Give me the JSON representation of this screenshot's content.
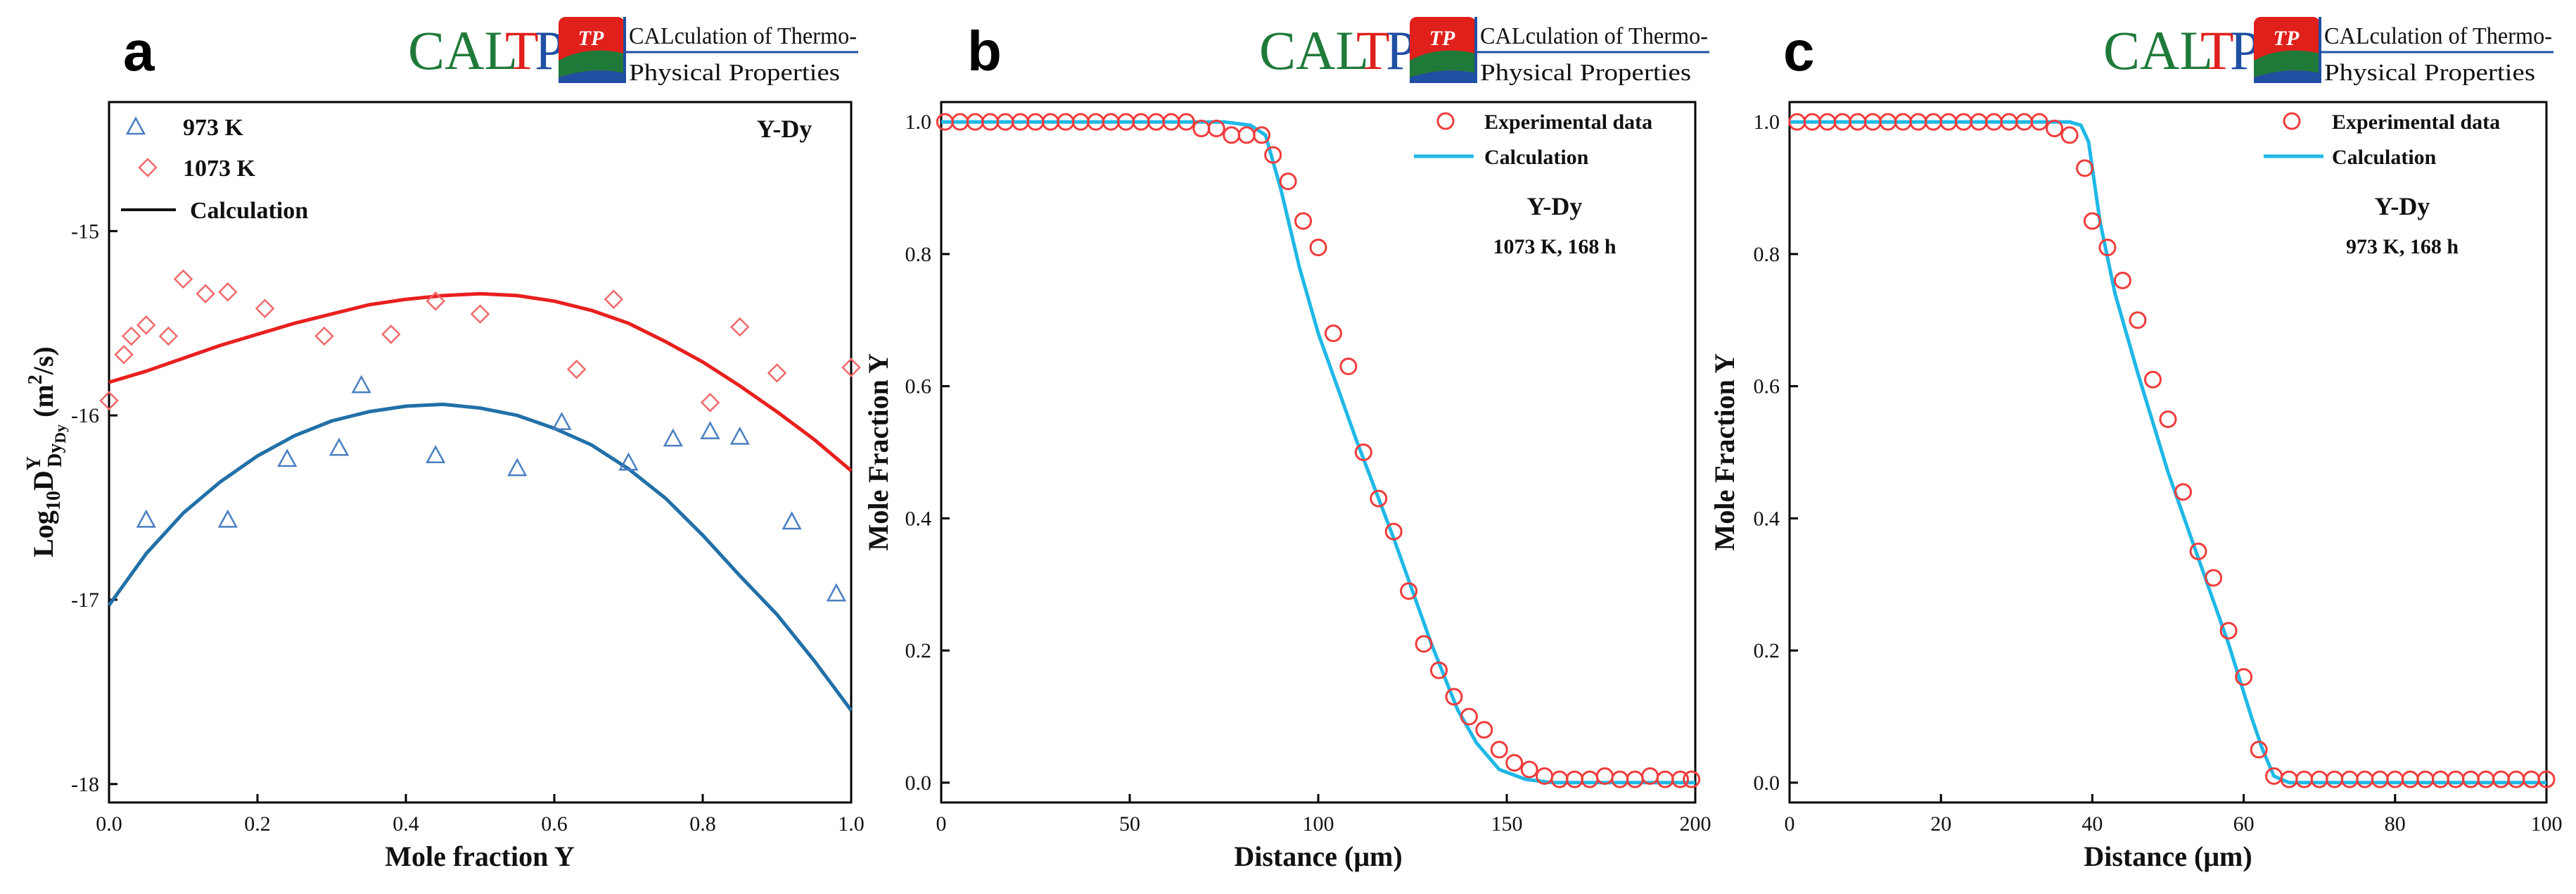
{
  "logo": {
    "brand_cal": "CAL",
    "brand_t": "T",
    "brand_pp": "PP",
    "badge": "TP",
    "line1": "CALculation of Thermo-",
    "line2": "Physical Properties",
    "colors": {
      "green": "#1f7a3a",
      "red": "#e0201b",
      "blue": "#1f4fa3"
    }
  },
  "chart_data": [
    {
      "panel": "a",
      "type": "scatter",
      "system_label": "Y-Dy",
      "xlabel": "Mole fraction Y",
      "ylabel": "Log10 D^Y_DyDy (m²/s)",
      "ylabel_parts": {
        "base": "Log",
        "base_sub": "10",
        "D": "D",
        "sup": "Y",
        "sub": "Dy",
        "subsub": "Dy",
        "units": " (m",
        "units_sup": "2",
        "units_end": "/s)"
      },
      "xlim": [
        0,
        1
      ],
      "ylim": [
        -18.1,
        -14.3
      ],
      "xticks": [
        0.0,
        0.2,
        0.4,
        0.6,
        0.8,
        1.0
      ],
      "xtick_labels": [
        "0.0",
        "0.2",
        "0.4",
        "0.6",
        "0.8",
        "1.0"
      ],
      "yticks": [
        -18,
        -17,
        -16,
        -15
      ],
      "ytick_labels": [
        "-18",
        "-17",
        "-16",
        "-15"
      ],
      "legend": [
        "973 K",
        "1073 K",
        "Calculation"
      ],
      "series": [
        {
          "name": "973 K",
          "kind": "points",
          "marker": "triangle",
          "color": "#4a7fc1",
          "x": [
            0.05,
            0.16,
            0.24,
            0.31,
            0.34,
            0.44,
            0.55,
            0.61,
            0.7,
            0.76,
            0.81,
            0.85,
            0.92,
            0.98
          ],
          "y": [
            -16.57,
            -16.57,
            -16.24,
            -16.18,
            -15.84,
            -16.22,
            -16.29,
            -16.04,
            -16.26,
            -16.13,
            -16.09,
            -16.12,
            -16.58,
            -16.97
          ]
        },
        {
          "name": "1073 K",
          "kind": "points",
          "marker": "diamond",
          "color": "#f06a6a",
          "x": [
            0.0,
            0.02,
            0.03,
            0.05,
            0.08,
            0.1,
            0.13,
            0.16,
            0.21,
            0.29,
            0.38,
            0.44,
            0.5,
            0.63,
            0.68,
            0.81,
            0.85,
            0.9,
            1.0
          ],
          "y": [
            -15.92,
            -15.67,
            -15.57,
            -15.51,
            -15.57,
            -15.26,
            -15.34,
            -15.33,
            -15.42,
            -15.57,
            -15.56,
            -15.38,
            -15.45,
            -15.75,
            -15.37,
            -15.93,
            -15.52,
            -15.77,
            -15.74
          ]
        },
        {
          "name": "Calculation 1073 K",
          "kind": "line",
          "color": "#e8201e",
          "x": [
            0.0,
            0.05,
            0.1,
            0.15,
            0.2,
            0.25,
            0.3,
            0.35,
            0.4,
            0.45,
            0.5,
            0.55,
            0.6,
            0.65,
            0.7,
            0.75,
            0.8,
            0.85,
            0.9,
            0.95,
            1.0
          ],
          "y": [
            -15.82,
            -15.76,
            -15.69,
            -15.62,
            -15.56,
            -15.5,
            -15.45,
            -15.4,
            -15.37,
            -15.35,
            -15.34,
            -15.35,
            -15.38,
            -15.43,
            -15.5,
            -15.6,
            -15.71,
            -15.84,
            -15.98,
            -16.13,
            -16.3
          ]
        },
        {
          "name": "Calculation 973 K",
          "kind": "line",
          "color": "#2170a8",
          "x": [
            0.0,
            0.05,
            0.1,
            0.15,
            0.2,
            0.25,
            0.3,
            0.35,
            0.4,
            0.45,
            0.5,
            0.55,
            0.6,
            0.65,
            0.7,
            0.75,
            0.8,
            0.85,
            0.9,
            0.95,
            1.0
          ],
          "y": [
            -17.03,
            -16.75,
            -16.53,
            -16.36,
            -16.22,
            -16.11,
            -16.03,
            -15.98,
            -15.95,
            -15.94,
            -15.96,
            -16.0,
            -16.07,
            -16.16,
            -16.29,
            -16.45,
            -16.65,
            -16.87,
            -17.08,
            -17.33,
            -17.6
          ]
        }
      ]
    },
    {
      "panel": "b",
      "type": "scatter",
      "system_label": "Y-Dy",
      "condition": "1073 K, 168 h",
      "xlabel": "Distance (μm)",
      "ylabel": "Mole Fraction Y",
      "xlim": [
        0,
        200
      ],
      "ylim": [
        -0.03,
        1.03
      ],
      "xticks": [
        0,
        50,
        100,
        150,
        200
      ],
      "xtick_labels": [
        "0",
        "50",
        "100",
        "150",
        "200"
      ],
      "yticks": [
        0.0,
        0.2,
        0.4,
        0.6,
        0.8,
        1.0
      ],
      "ytick_labels": [
        "0.0",
        "0.2",
        "0.4",
        "0.6",
        "0.8",
        "1.0"
      ],
      "legend": [
        "Experimental data",
        "Calculation"
      ],
      "series": [
        {
          "name": "Experimental data",
          "kind": "points",
          "marker": "circle",
          "color": "#f03c3c",
          "x": [
            1,
            5,
            9,
            13,
            17,
            21,
            25,
            29,
            33,
            37,
            41,
            45,
            49,
            53,
            57,
            61,
            65,
            69,
            73,
            77,
            81,
            85,
            88,
            92,
            96,
            100,
            104,
            108,
            112,
            116,
            120,
            124,
            128,
            132,
            136,
            140,
            144,
            148,
            152,
            156,
            160,
            164,
            168,
            172,
            176,
            180,
            184,
            188,
            192,
            196,
            199
          ],
          "y": [
            1.0,
            1.0,
            1.0,
            1.0,
            1.0,
            1.0,
            1.0,
            1.0,
            1.0,
            1.0,
            1.0,
            1.0,
            1.0,
            1.0,
            1.0,
            1.0,
            1.0,
            0.99,
            0.99,
            0.98,
            0.98,
            0.98,
            0.95,
            0.91,
            0.85,
            0.81,
            0.68,
            0.63,
            0.5,
            0.43,
            0.38,
            0.29,
            0.21,
            0.17,
            0.13,
            0.1,
            0.08,
            0.05,
            0.03,
            0.02,
            0.01,
            0.005,
            0.005,
            0.005,
            0.01,
            0.005,
            0.005,
            0.01,
            0.005,
            0.005,
            0.005
          ]
        },
        {
          "name": "Calculation",
          "kind": "line",
          "color": "#1fb8e6",
          "x": [
            0,
            50,
            75,
            82,
            86,
            90,
            95,
            100,
            110,
            120,
            130,
            137,
            142,
            148,
            155,
            162,
            170,
            200
          ],
          "y": [
            1.0,
            1.0,
            1.0,
            0.995,
            0.98,
            0.9,
            0.78,
            0.68,
            0.52,
            0.37,
            0.21,
            0.11,
            0.06,
            0.02,
            0.005,
            0.0,
            0.0,
            0.0
          ]
        }
      ]
    },
    {
      "panel": "c",
      "type": "scatter",
      "system_label": "Y-Dy",
      "condition": "973 K, 168 h",
      "xlabel": "Distance (μm)",
      "ylabel": "Mole Fraction Y",
      "xlim": [
        0,
        100
      ],
      "ylim": [
        -0.03,
        1.03
      ],
      "xticks": [
        0,
        20,
        40,
        60,
        80,
        100
      ],
      "xtick_labels": [
        "0",
        "20",
        "40",
        "60",
        "80",
        "100"
      ],
      "yticks": [
        0.0,
        0.2,
        0.4,
        0.6,
        0.8,
        1.0
      ],
      "ytick_labels": [
        "0.0",
        "0.2",
        "0.4",
        "0.6",
        "0.8",
        "1.0"
      ],
      "legend": [
        "Experimental data",
        "Calculation"
      ],
      "series": [
        {
          "name": "Experimental data",
          "kind": "points",
          "marker": "circle",
          "color": "#f03c3c",
          "x": [
            1,
            3,
            5,
            7,
            9,
            11,
            13,
            15,
            17,
            19,
            21,
            23,
            25,
            27,
            29,
            31,
            33,
            35,
            37,
            39,
            40,
            42,
            44,
            46,
            48,
            50,
            52,
            54,
            56,
            58,
            60,
            62,
            64,
            66,
            68,
            70,
            72,
            74,
            76,
            78,
            80,
            82,
            84,
            86,
            88,
            90,
            92,
            94,
            96,
            98,
            100
          ],
          "y": [
            1.0,
            1.0,
            1.0,
            1.0,
            1.0,
            1.0,
            1.0,
            1.0,
            1.0,
            1.0,
            1.0,
            1.0,
            1.0,
            1.0,
            1.0,
            1.0,
            1.0,
            0.99,
            0.98,
            0.93,
            0.85,
            0.81,
            0.76,
            0.7,
            0.61,
            0.55,
            0.44,
            0.35,
            0.31,
            0.23,
            0.16,
            0.05,
            0.01,
            0.005,
            0.005,
            0.005,
            0.005,
            0.005,
            0.005,
            0.005,
            0.005,
            0.005,
            0.005,
            0.005,
            0.005,
            0.005,
            0.005,
            0.005,
            0.005,
            0.005,
            0.005
          ]
        },
        {
          "name": "Calculation",
          "kind": "line",
          "color": "#1fb8e6",
          "x": [
            0,
            30,
            37,
            38.5,
            39.5,
            41,
            43,
            46,
            50,
            54,
            58,
            61,
            62.5,
            64,
            66,
            70,
            100
          ],
          "y": [
            1.0,
            1.0,
            1.0,
            0.995,
            0.97,
            0.85,
            0.74,
            0.62,
            0.47,
            0.34,
            0.21,
            0.1,
            0.05,
            0.01,
            0.0,
            0.0,
            0.0
          ]
        }
      ]
    }
  ]
}
